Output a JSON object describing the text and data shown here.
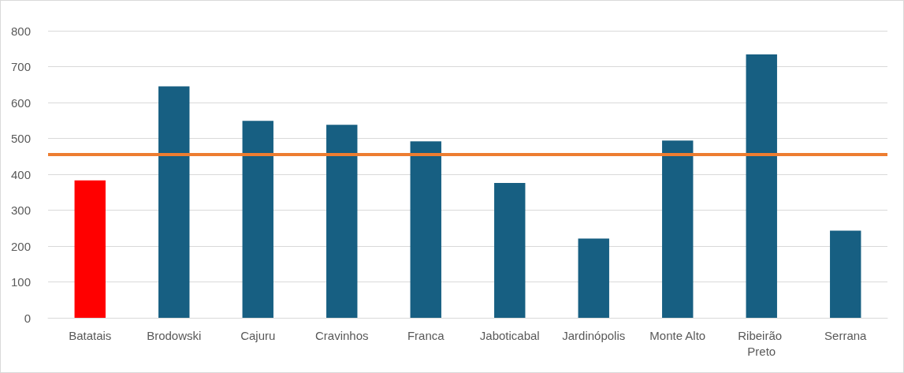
{
  "chart_data": {
    "type": "bar",
    "categories": [
      "Batatais",
      "Brodowski",
      "Cajuru",
      "Cravinhos",
      "Franca",
      "Jaboticabal",
      "Jardinópolis",
      "Monte Alto",
      "Ribeirão Preto",
      "Serrana"
    ],
    "values": [
      383,
      645,
      549,
      538,
      492,
      376,
      221,
      494,
      734,
      243
    ],
    "colors": [
      "#ff0000",
      "#175f82",
      "#175f82",
      "#175f82",
      "#175f82",
      "#175f82",
      "#175f82",
      "#175f82",
      "#175f82",
      "#175f82"
    ],
    "ylim": [
      0,
      800
    ],
    "yticks": [
      0,
      100,
      200,
      300,
      400,
      500,
      600,
      700,
      800
    ],
    "grid": "y",
    "ref_lines": [
      {
        "axis": "y",
        "value": 455,
        "color": "#ed7d31"
      }
    ]
  }
}
